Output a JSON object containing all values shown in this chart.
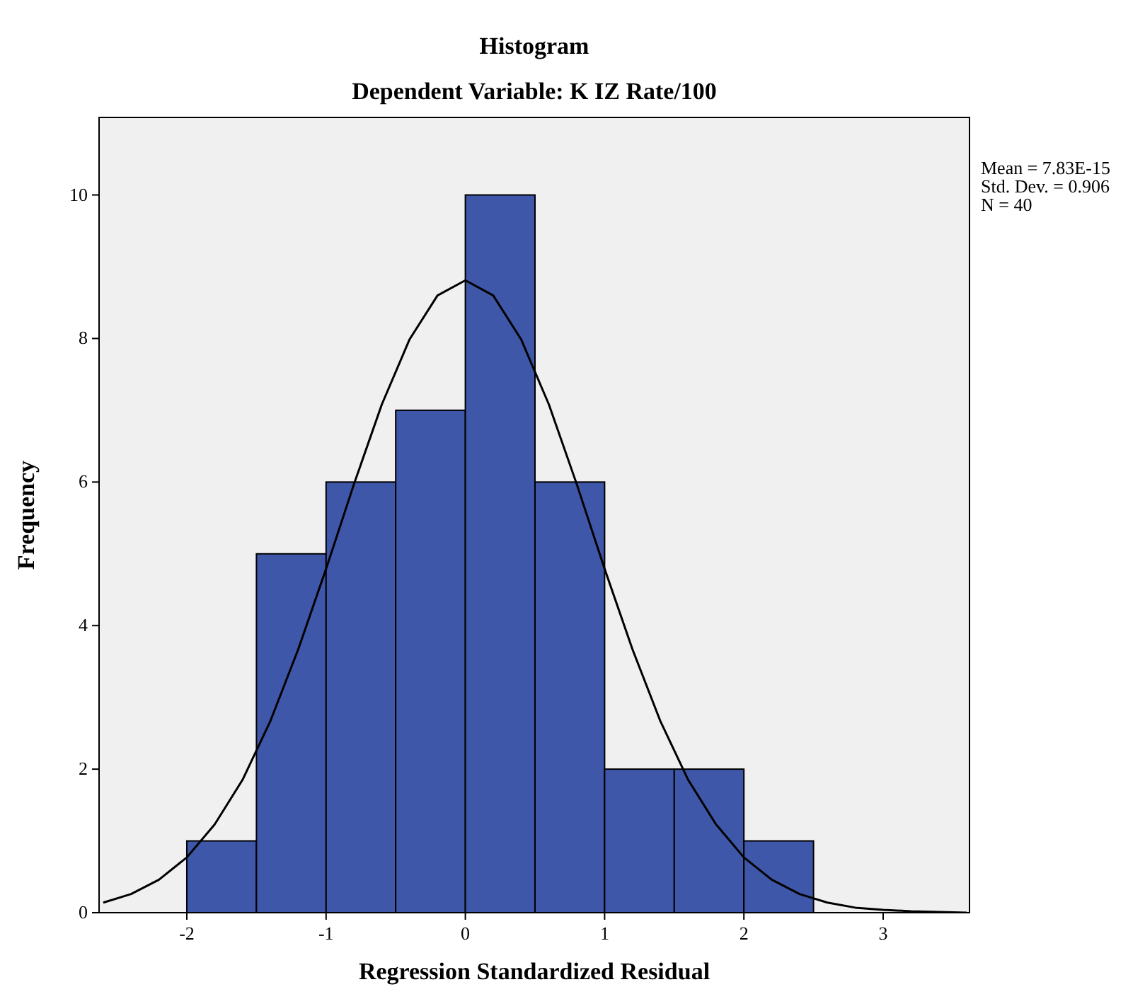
{
  "chart_data": {
    "type": "histogram",
    "title": "Histogram",
    "subtitle": "Dependent Variable: K IZ Rate/100",
    "xlabel": "Regression Standardized Residual",
    "ylabel": "Frequency",
    "bins": [
      -2,
      -1.5,
      -1,
      -0.5,
      0,
      0.5,
      1,
      1.5,
      2,
      2.5
    ],
    "values": [
      1,
      5,
      6,
      7,
      10,
      6,
      2,
      2,
      1
    ],
    "color": "#3f57a8",
    "series": [
      {
        "type": "line",
        "color": "#000000",
        "x": [
          -2.6,
          -2.4,
          -2.2,
          -2,
          -1.8,
          -1.6,
          -1.4,
          -1.2,
          -1,
          -0.8,
          -0.6,
          -0.4,
          -0.2,
          0,
          0.2,
          0.4,
          0.6,
          0.8,
          1,
          1.2,
          1.4,
          1.6,
          1.8,
          2,
          2.2,
          2.4,
          2.6,
          2.8,
          3,
          3.2,
          3.4,
          3.6
        ],
        "values": [
          0.14,
          0.26,
          0.46,
          0.77,
          1.23,
          1.85,
          2.67,
          3.67,
          4.79,
          5.97,
          7.08,
          7.99,
          8.6,
          8.81,
          8.6,
          7.99,
          7.08,
          5.97,
          4.79,
          3.67,
          2.67,
          1.85,
          1.23,
          0.77,
          0.46,
          0.26,
          0.14,
          0.07,
          0.04,
          0.02,
          0.01,
          0
        ]
      }
    ],
    "xlim": [
      -2.63,
      3.62
    ],
    "ylim": [
      0,
      11.08
    ],
    "xticks": [
      -2,
      -1,
      0,
      1,
      2,
      3
    ],
    "yticks": [
      0,
      2,
      4,
      6,
      8,
      10
    ],
    "grid": false,
    "marker": "none",
    "line_style": "solid",
    "annotations": [
      "Mean = 7.83E-15",
      "Std. Dev. = 0.906",
      "N = 40"
    ]
  }
}
